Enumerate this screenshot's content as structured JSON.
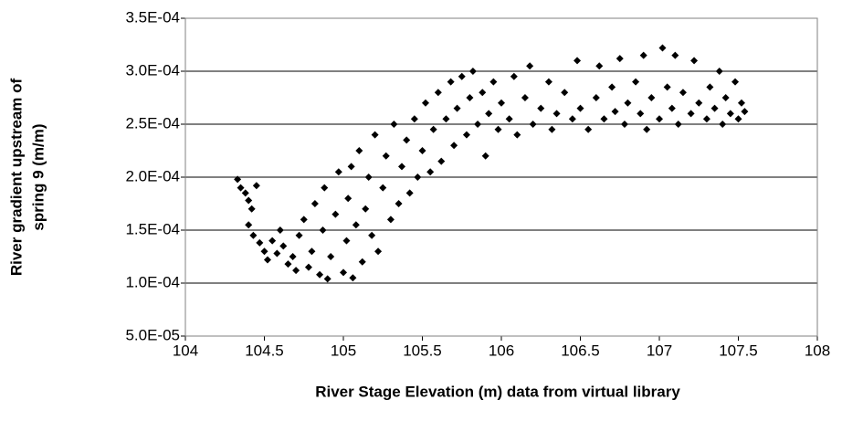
{
  "chart_data": {
    "type": "scatter",
    "xlabel": "River Stage Elevation (m) data from virtual library",
    "ylabel": [
      "River gradient upstream of",
      "spring 9 (m/m)"
    ],
    "color": "#000000",
    "marker": "diamond",
    "grid": true,
    "xlim": [
      104,
      108
    ],
    "xticks": [
      104,
      104.5,
      105,
      105.5,
      106,
      106.5,
      107,
      107.5,
      108
    ],
    "ylim": [
      5e-05,
      0.00035
    ],
    "yticks": [
      {
        "value": 5e-05,
        "label": "5.0E-05"
      },
      {
        "value": 0.0001,
        "label": "1.0E-04"
      },
      {
        "value": 0.00015,
        "label": "1.5E-04"
      },
      {
        "value": 0.0002,
        "label": "2.0E-04"
      },
      {
        "value": 0.00025,
        "label": "2.5E-04"
      },
      {
        "value": 0.0003,
        "label": "3.0E-04"
      },
      {
        "value": 0.00035,
        "label": "3.5E-04"
      }
    ],
    "x": [
      104.33,
      104.35,
      104.38,
      104.4,
      104.42,
      104.45,
      104.4,
      104.43,
      104.47,
      104.5,
      104.52,
      104.55,
      104.58,
      104.6,
      104.62,
      104.65,
      104.68,
      104.7,
      104.72,
      104.75,
      104.78,
      104.8,
      104.82,
      104.85,
      104.87,
      104.88,
      104.9,
      104.92,
      104.95,
      104.97,
      105.0,
      105.02,
      105.03,
      105.05,
      105.06,
      105.08,
      105.1,
      105.12,
      105.14,
      105.16,
      105.18,
      105.2,
      105.22,
      105.25,
      105.27,
      105.3,
      105.32,
      105.35,
      105.37,
      105.4,
      105.42,
      105.45,
      105.47,
      105.5,
      105.52,
      105.55,
      105.57,
      105.6,
      105.62,
      105.65,
      105.68,
      105.7,
      105.72,
      105.75,
      105.78,
      105.8,
      105.82,
      105.85,
      105.88,
      105.9,
      105.92,
      105.95,
      105.98,
      106.0,
      106.05,
      106.08,
      106.1,
      106.15,
      106.18,
      106.2,
      106.25,
      106.3,
      106.32,
      106.35,
      106.4,
      106.45,
      106.48,
      106.5,
      106.55,
      106.6,
      106.62,
      106.65,
      106.7,
      106.72,
      106.75,
      106.78,
      106.8,
      106.85,
      106.88,
      106.9,
      106.92,
      106.95,
      107.0,
      107.02,
      107.05,
      107.08,
      107.1,
      107.12,
      107.15,
      107.2,
      107.22,
      107.25,
      107.3,
      107.32,
      107.35,
      107.38,
      107.4,
      107.42,
      107.45,
      107.48,
      107.5,
      107.52,
      107.54
    ],
    "values": [
      0.000198,
      0.00019,
      0.000185,
      0.000178,
      0.00017,
      0.000192,
      0.000155,
      0.000145,
      0.000138,
      0.00013,
      0.000122,
      0.00014,
      0.000128,
      0.00015,
      0.000135,
      0.000118,
      0.000125,
      0.000112,
      0.000145,
      0.00016,
      0.000115,
      0.00013,
      0.000175,
      0.000108,
      0.00015,
      0.00019,
      0.000104,
      0.000125,
      0.000165,
      0.000205,
      0.00011,
      0.00014,
      0.00018,
      0.00021,
      0.000105,
      0.000155,
      0.000225,
      0.00012,
      0.00017,
      0.0002,
      0.000145,
      0.00024,
      0.00013,
      0.00019,
      0.00022,
      0.00016,
      0.00025,
      0.000175,
      0.00021,
      0.000235,
      0.000185,
      0.000255,
      0.0002,
      0.000225,
      0.00027,
      0.000205,
      0.000245,
      0.00028,
      0.000215,
      0.000255,
      0.00029,
      0.00023,
      0.000265,
      0.000295,
      0.00024,
      0.000275,
      0.0003,
      0.00025,
      0.00028,
      0.00022,
      0.00026,
      0.00029,
      0.000245,
      0.00027,
      0.000255,
      0.000295,
      0.00024,
      0.000275,
      0.000305,
      0.00025,
      0.000265,
      0.00029,
      0.000245,
      0.00026,
      0.00028,
      0.000255,
      0.00031,
      0.000265,
      0.000245,
      0.000275,
      0.000305,
      0.000255,
      0.000285,
      0.000262,
      0.000312,
      0.00025,
      0.00027,
      0.00029,
      0.00026,
      0.000315,
      0.000245,
      0.000275,
      0.000255,
      0.000322,
      0.000285,
      0.000265,
      0.000315,
      0.00025,
      0.00028,
      0.00026,
      0.00031,
      0.00027,
      0.000255,
      0.000285,
      0.000265,
      0.0003,
      0.00025,
      0.000275,
      0.00026,
      0.00029,
      0.000255,
      0.00027,
      0.000262
    ]
  }
}
